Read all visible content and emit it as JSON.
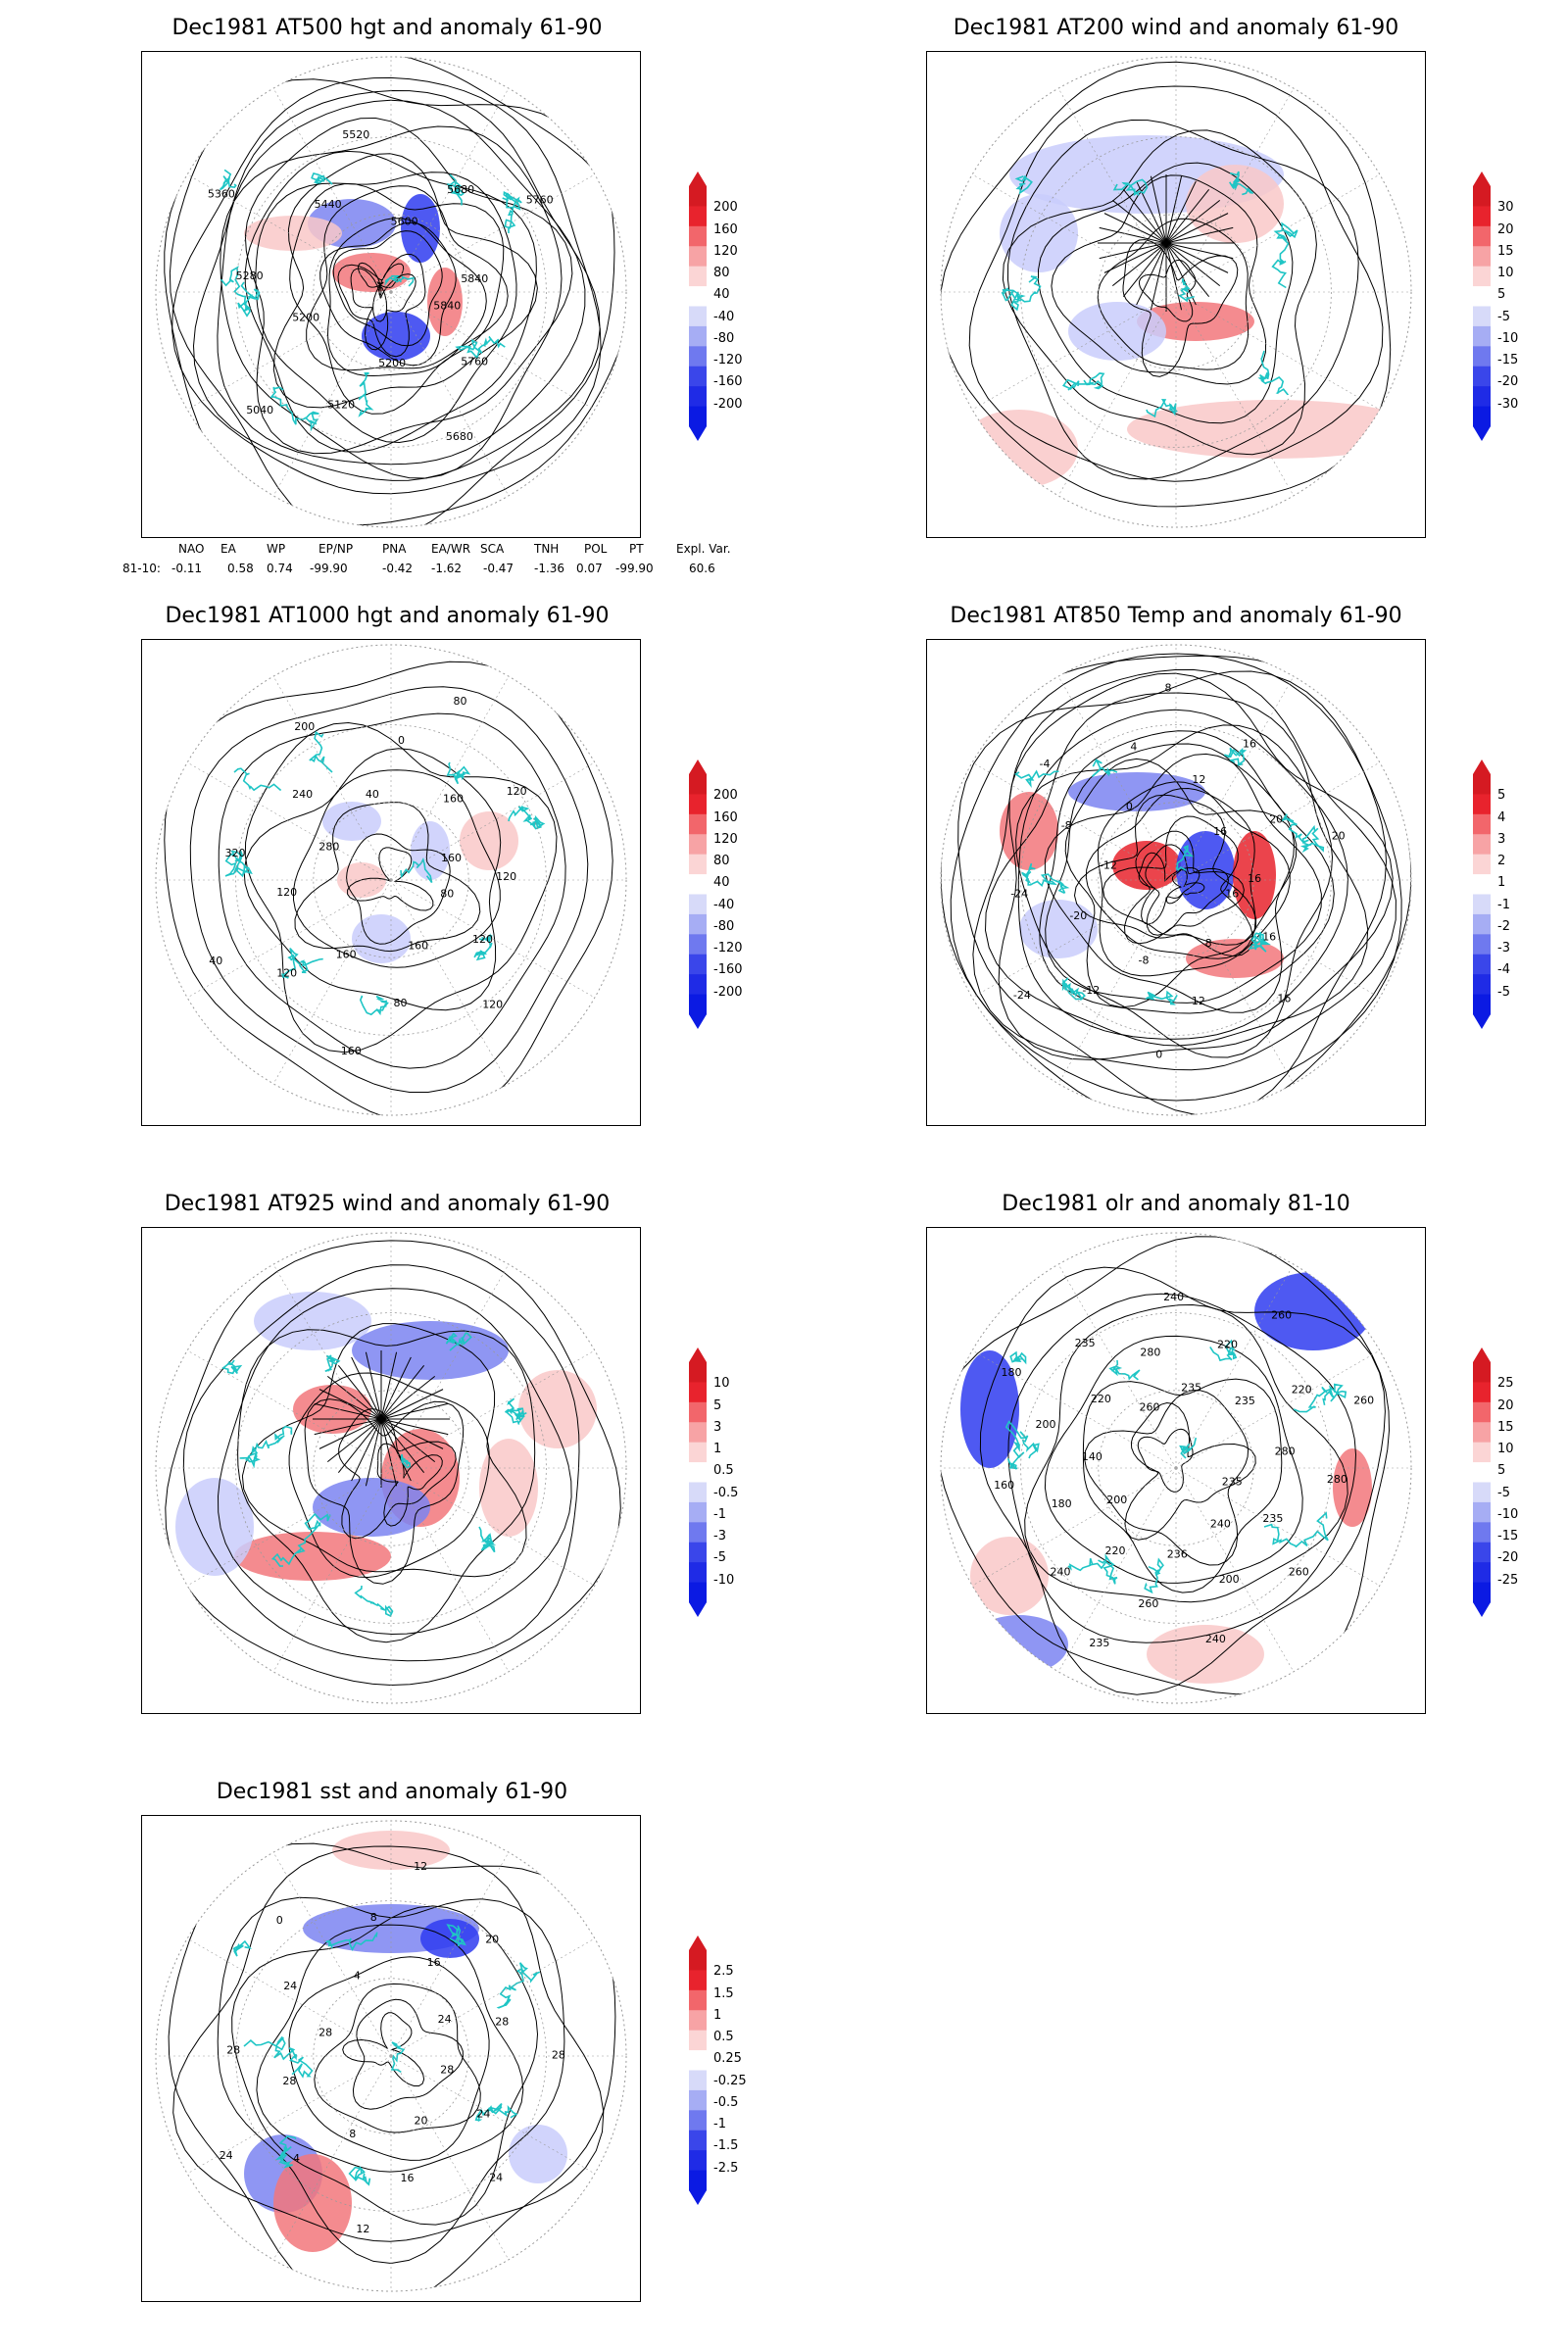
{
  "colors": {
    "coast": "#1fc5c5",
    "contour": "#000000",
    "positive_strong": "#e8232d",
    "positive_weak": "#f9c8c8",
    "negative_strong": "#2f3cf0",
    "negative_weak": "#c9cdfb",
    "grid": "#9a9a9a"
  },
  "panels": [
    {
      "id": "z500",
      "title": "Dec1981 AT500 hgt and anomaly 61-90",
      "colorbar": [
        "200",
        "160",
        "120",
        "80",
        "40",
        "-40",
        "-80",
        "-120",
        "-160",
        "-200"
      ],
      "contour_labels": [
        "5840",
        "5760",
        "5680",
        "5200",
        "5120",
        "5040",
        "5200",
        "5280",
        "5360",
        "5440",
        "5520",
        "5600",
        "5680",
        "5760",
        "5840"
      ]
    },
    {
      "id": "u200",
      "title": "Dec1981 AT200 wind and anomaly 61-90",
      "colorbar": [
        "30",
        "20",
        "15",
        "10",
        "5",
        "-5",
        "-10",
        "-15",
        "-20",
        "-30"
      ],
      "contour_labels": []
    },
    {
      "id": "z1000",
      "title": "Dec1981 AT1000 hgt and anomaly 61-90",
      "colorbar": [
        "200",
        "160",
        "120",
        "80",
        "40",
        "-40",
        "-80",
        "-120",
        "-160",
        "-200"
      ],
      "contour_labels": [
        "80",
        "120",
        "120",
        "160",
        "80",
        "160",
        "160",
        "120",
        "40",
        "120",
        "320",
        "280",
        "240",
        "200",
        "40",
        "0",
        "80",
        "160",
        "120",
        "160",
        "120"
      ]
    },
    {
      "id": "t850",
      "title": "Dec1981 AT850 Temp and anomaly 61-90",
      "colorbar": [
        "5",
        "4",
        "3",
        "2",
        "1",
        "-1",
        "-2",
        "-3",
        "-4",
        "-5"
      ],
      "contour_labels": [
        "16",
        "16",
        "16",
        "8",
        "12",
        "0",
        "-8",
        "-12",
        "-24",
        "-20",
        "-24",
        "-12",
        "-8",
        "-4",
        "0",
        "4",
        "8",
        "12",
        "16",
        "16",
        "20",
        "20",
        "16"
      ]
    },
    {
      "id": "u925",
      "title": "Dec1981 AT925 wind and anomaly 61-90",
      "colorbar": [
        "10",
        "5",
        "3",
        "1",
        "0.5",
        "-0.5",
        "-1",
        "-3",
        "-5",
        "-10"
      ],
      "contour_labels": []
    },
    {
      "id": "olr",
      "title": "Dec1981 olr and anomaly 81-10",
      "colorbar": [
        "25",
        "20",
        "15",
        "10",
        "5",
        "-5",
        "-10",
        "-15",
        "-20",
        "-25"
      ],
      "contour_labels": [
        "235",
        "235",
        "260",
        "240",
        "200",
        "240",
        "236",
        "260",
        "235",
        "220",
        "240",
        "200",
        "180",
        "160",
        "140",
        "200",
        "180",
        "220",
        "235",
        "260",
        "280",
        "240",
        "235",
        "220",
        "260",
        "235",
        "220",
        "260",
        "280",
        "280"
      ]
    },
    {
      "id": "sst",
      "title": "Dec1981 sst and anomaly 61-90",
      "colorbar": [
        "2.5",
        "1.5",
        "1",
        "0.5",
        "0.25",
        "-0.25",
        "-0.5",
        "-1",
        "-1.5",
        "-2.5"
      ],
      "contour_labels": [
        "28",
        "24",
        "24",
        "20",
        "16",
        "12",
        "8",
        "4",
        "24",
        "28",
        "28",
        "28",
        "24",
        "0",
        "4",
        "8",
        "12",
        "16",
        "20",
        "24",
        "28",
        "28"
      ]
    }
  ],
  "teleconnections": {
    "header": [
      "NAO",
      "EA",
      "WP",
      "EP/NP",
      "PNA",
      "EA/WR",
      "SCA",
      "TNH",
      "POL",
      "PT",
      "Expl. Var."
    ],
    "row_label": "81-10:",
    "values": [
      "-0.11",
      "0.58",
      "0.74",
      "-99.90",
      "-0.42",
      "-1.62",
      "-0.47",
      "-1.36",
      "0.07",
      "-99.90",
      "60.6"
    ]
  }
}
